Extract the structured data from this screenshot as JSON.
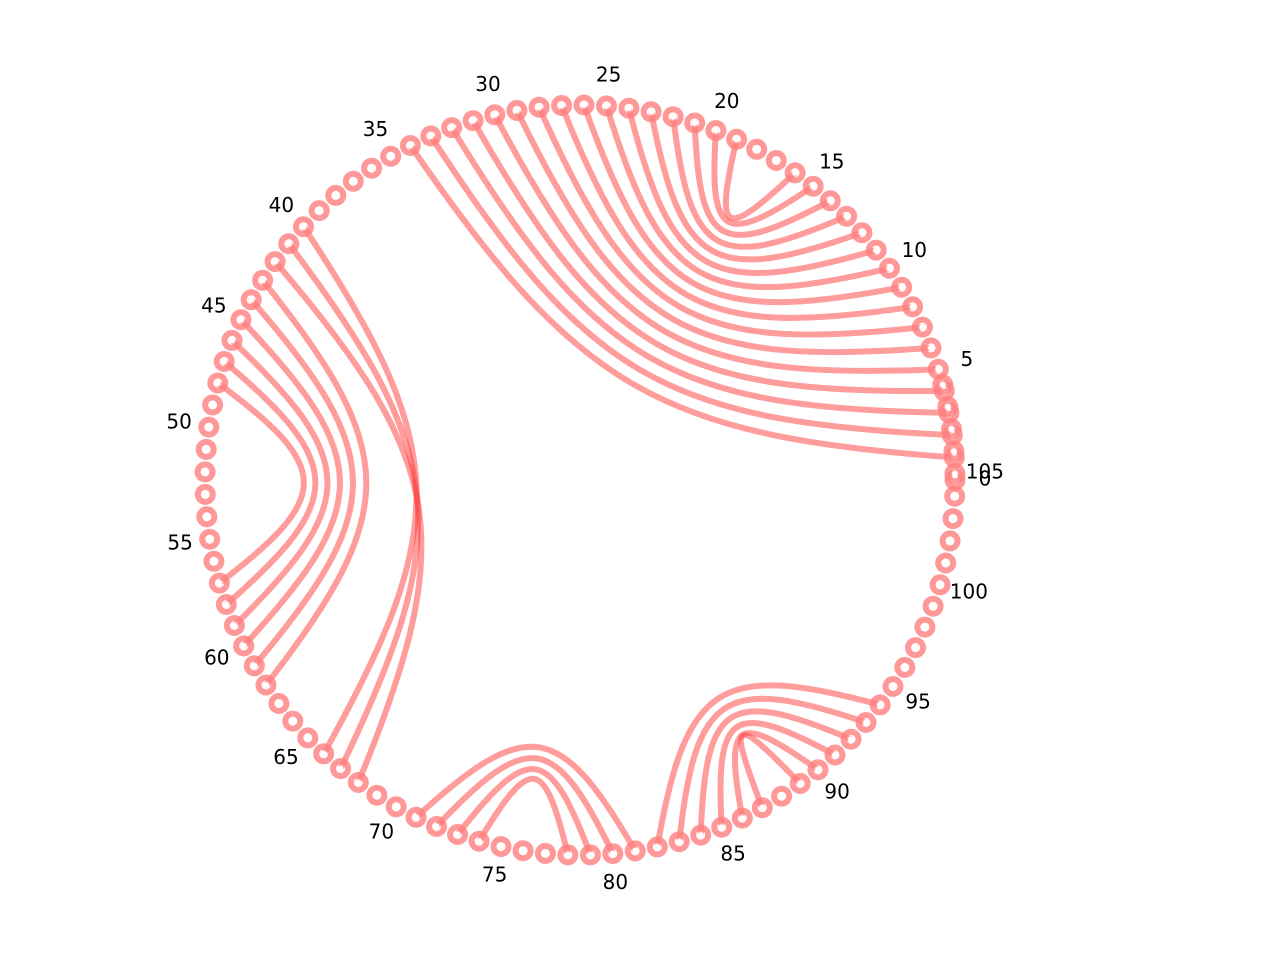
{
  "chart_data": {
    "type": "arc-diagram",
    "layout": "circular",
    "node_count": 110,
    "node_labels": [
      "0",
      "5",
      "10",
      "15",
      "20",
      "25",
      "30",
      "35",
      "40",
      "45",
      "50",
      "55",
      "60",
      "65",
      "70",
      "75",
      "80",
      "85",
      "90",
      "95",
      "100",
      "105"
    ],
    "label_step": 5,
    "links": [
      [
        1,
        34
      ],
      [
        2,
        33
      ],
      [
        3,
        32
      ],
      [
        4,
        31
      ],
      [
        5,
        30
      ],
      [
        6,
        29
      ],
      [
        7,
        28
      ],
      [
        8,
        27
      ],
      [
        9,
        26
      ],
      [
        10,
        25
      ],
      [
        11,
        24
      ],
      [
        12,
        23
      ],
      [
        13,
        22
      ],
      [
        14,
        21
      ],
      [
        15,
        20
      ],
      [
        16,
        19
      ],
      [
        40,
        66
      ],
      [
        41,
        67
      ],
      [
        42,
        68
      ],
      [
        43,
        62
      ],
      [
        44,
        61
      ],
      [
        45,
        60
      ],
      [
        46,
        59
      ],
      [
        47,
        58
      ],
      [
        48,
        57
      ],
      [
        71,
        81
      ],
      [
        72,
        80
      ],
      [
        73,
        79
      ],
      [
        74,
        78
      ],
      [
        82,
        94
      ],
      [
        83,
        93
      ],
      [
        84,
        92
      ],
      [
        85,
        91
      ],
      [
        86,
        90
      ],
      [
        87,
        89
      ]
    ],
    "colors": {
      "node": "#ff7f7f",
      "link": "#ff3a3a"
    },
    "grid": false,
    "axes": "off"
  }
}
